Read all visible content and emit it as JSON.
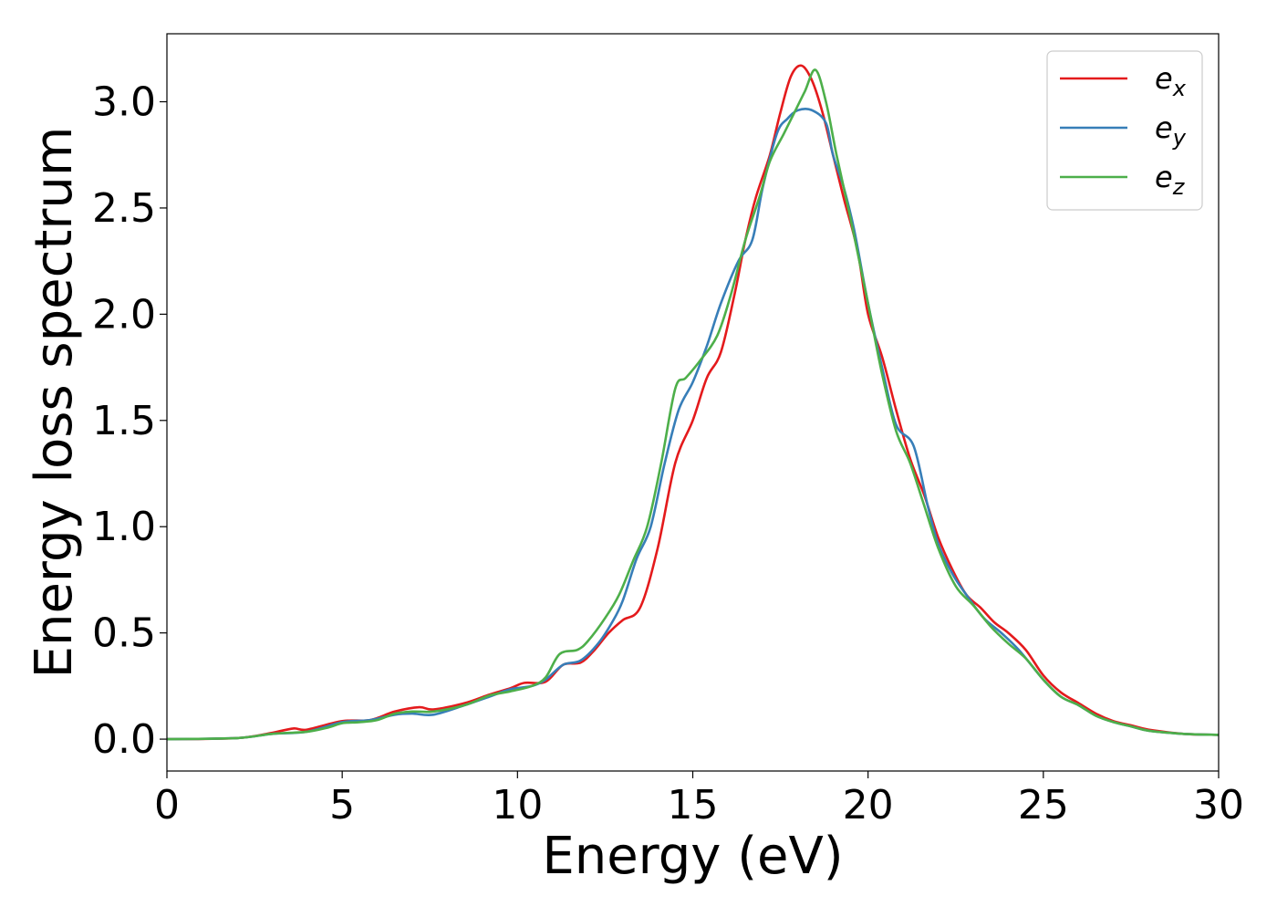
{
  "chart_data": {
    "type": "line",
    "title": "",
    "xlabel": "Energy (eV)",
    "ylabel": "Energy loss spectrum",
    "xlim": [
      0,
      30
    ],
    "ylim": [
      -0.15,
      3.32
    ],
    "xticks": [
      0,
      5,
      10,
      15,
      20,
      25,
      30
    ],
    "xtick_labels": [
      "0",
      "5",
      "10",
      "15",
      "20",
      "25",
      "30"
    ],
    "yticks": [
      0.0,
      0.5,
      1.0,
      1.5,
      2.0,
      2.5,
      3.0
    ],
    "ytick_labels": [
      "0.0",
      "0.5",
      "1.0",
      "1.5",
      "2.0",
      "2.5",
      "3.0"
    ],
    "grid": false,
    "legend_position": "top-right",
    "series": [
      {
        "name": "e_x",
        "label_base": "e",
        "label_sub": "x",
        "color": "#e41a1c",
        "points": [
          [
            0,
            0
          ],
          [
            2,
            0.005
          ],
          [
            3,
            0.03
          ],
          [
            3.6,
            0.05
          ],
          [
            4,
            0.045
          ],
          [
            5,
            0.085
          ],
          [
            5.8,
            0.09
          ],
          [
            6.5,
            0.13
          ],
          [
            7.2,
            0.15
          ],
          [
            7.6,
            0.14
          ],
          [
            8.5,
            0.17
          ],
          [
            9.2,
            0.21
          ],
          [
            9.8,
            0.24
          ],
          [
            10.2,
            0.265
          ],
          [
            10.8,
            0.27
          ],
          [
            11.3,
            0.35
          ],
          [
            11.8,
            0.36
          ],
          [
            12.2,
            0.42
          ],
          [
            12.6,
            0.5
          ],
          [
            13,
            0.56
          ],
          [
            13.5,
            0.62
          ],
          [
            14,
            0.9
          ],
          [
            14.5,
            1.3
          ],
          [
            15,
            1.5
          ],
          [
            15.4,
            1.7
          ],
          [
            15.8,
            1.82
          ],
          [
            16.2,
            2.1
          ],
          [
            16.5,
            2.35
          ],
          [
            16.8,
            2.55
          ],
          [
            17.2,
            2.75
          ],
          [
            17.5,
            2.95
          ],
          [
            17.8,
            3.12
          ],
          [
            18.1,
            3.17
          ],
          [
            18.4,
            3.1
          ],
          [
            18.7,
            2.95
          ],
          [
            19,
            2.75
          ],
          [
            19.3,
            2.55
          ],
          [
            19.7,
            2.3
          ],
          [
            20,
            2.0
          ],
          [
            20.4,
            1.8
          ],
          [
            20.8,
            1.55
          ],
          [
            21.2,
            1.32
          ],
          [
            21.6,
            1.15
          ],
          [
            22,
            0.95
          ],
          [
            22.4,
            0.8
          ],
          [
            22.8,
            0.68
          ],
          [
            23.2,
            0.62
          ],
          [
            23.6,
            0.55
          ],
          [
            24,
            0.5
          ],
          [
            24.5,
            0.42
          ],
          [
            25,
            0.3
          ],
          [
            25.5,
            0.22
          ],
          [
            26,
            0.17
          ],
          [
            26.5,
            0.12
          ],
          [
            27,
            0.085
          ],
          [
            27.5,
            0.065
          ],
          [
            28,
            0.045
          ],
          [
            29,
            0.025
          ],
          [
            30,
            0.02
          ]
        ]
      },
      {
        "name": "e_y",
        "label_base": "e",
        "label_sub": "y",
        "color": "#377eb8",
        "points": [
          [
            0,
            0
          ],
          [
            2,
            0.005
          ],
          [
            3,
            0.025
          ],
          [
            4,
            0.035
          ],
          [
            5,
            0.08
          ],
          [
            5.8,
            0.09
          ],
          [
            6.5,
            0.115
          ],
          [
            7,
            0.12
          ],
          [
            7.6,
            0.115
          ],
          [
            8.5,
            0.16
          ],
          [
            9.2,
            0.2
          ],
          [
            9.8,
            0.235
          ],
          [
            10.4,
            0.25
          ],
          [
            10.8,
            0.28
          ],
          [
            11.3,
            0.35
          ],
          [
            11.8,
            0.37
          ],
          [
            12.3,
            0.45
          ],
          [
            12.7,
            0.55
          ],
          [
            13,
            0.65
          ],
          [
            13.4,
            0.85
          ],
          [
            13.8,
            1.0
          ],
          [
            14.2,
            1.3
          ],
          [
            14.6,
            1.55
          ],
          [
            15,
            1.68
          ],
          [
            15.4,
            1.85
          ],
          [
            15.8,
            2.05
          ],
          [
            16.3,
            2.25
          ],
          [
            16.7,
            2.35
          ],
          [
            17,
            2.6
          ],
          [
            17.4,
            2.85
          ],
          [
            17.7,
            2.92
          ],
          [
            18,
            2.96
          ],
          [
            18.4,
            2.96
          ],
          [
            18.8,
            2.9
          ],
          [
            19,
            2.75
          ],
          [
            19.3,
            2.6
          ],
          [
            19.6,
            2.4
          ],
          [
            20,
            2.05
          ],
          [
            20.4,
            1.75
          ],
          [
            20.8,
            1.48
          ],
          [
            21.3,
            1.38
          ],
          [
            21.7,
            1.1
          ],
          [
            22,
            0.92
          ],
          [
            22.4,
            0.78
          ],
          [
            22.8,
            0.68
          ],
          [
            23.3,
            0.57
          ],
          [
            23.8,
            0.5
          ],
          [
            24.3,
            0.42
          ],
          [
            25,
            0.28
          ],
          [
            25.5,
            0.2
          ],
          [
            26,
            0.16
          ],
          [
            26.5,
            0.11
          ],
          [
            27,
            0.08
          ],
          [
            27.5,
            0.06
          ],
          [
            28,
            0.04
          ],
          [
            29,
            0.025
          ],
          [
            30,
            0.02
          ]
        ]
      },
      {
        "name": "e_z",
        "label_base": "e",
        "label_sub": "z",
        "color": "#4daf4a",
        "points": [
          [
            0,
            0
          ],
          [
            2,
            0.005
          ],
          [
            3,
            0.025
          ],
          [
            4,
            0.035
          ],
          [
            4.6,
            0.055
          ],
          [
            5,
            0.075
          ],
          [
            5.5,
            0.08
          ],
          [
            6,
            0.09
          ],
          [
            6.5,
            0.12
          ],
          [
            7,
            0.13
          ],
          [
            7.6,
            0.13
          ],
          [
            8.5,
            0.16
          ],
          [
            9.2,
            0.205
          ],
          [
            9.8,
            0.225
          ],
          [
            10.4,
            0.25
          ],
          [
            10.8,
            0.29
          ],
          [
            11.2,
            0.4
          ],
          [
            11.7,
            0.42
          ],
          [
            12,
            0.46
          ],
          [
            12.5,
            0.57
          ],
          [
            12.9,
            0.68
          ],
          [
            13.3,
            0.84
          ],
          [
            13.7,
            1.0
          ],
          [
            14.1,
            1.3
          ],
          [
            14.5,
            1.65
          ],
          [
            14.8,
            1.7
          ],
          [
            15.2,
            1.78
          ],
          [
            15.7,
            1.9
          ],
          [
            16.1,
            2.1
          ],
          [
            16.5,
            2.35
          ],
          [
            16.9,
            2.55
          ],
          [
            17.2,
            2.72
          ],
          [
            17.6,
            2.85
          ],
          [
            17.9,
            2.95
          ],
          [
            18.2,
            3.05
          ],
          [
            18.5,
            3.15
          ],
          [
            18.8,
            3.0
          ],
          [
            19.1,
            2.75
          ],
          [
            19.5,
            2.45
          ],
          [
            20,
            2.05
          ],
          [
            20.4,
            1.72
          ],
          [
            20.8,
            1.45
          ],
          [
            21.2,
            1.3
          ],
          [
            21.6,
            1.1
          ],
          [
            22,
            0.9
          ],
          [
            22.5,
            0.72
          ],
          [
            23,
            0.63
          ],
          [
            23.5,
            0.53
          ],
          [
            24,
            0.45
          ],
          [
            24.5,
            0.38
          ],
          [
            25,
            0.28
          ],
          [
            25.5,
            0.2
          ],
          [
            26,
            0.16
          ],
          [
            26.5,
            0.11
          ],
          [
            27,
            0.08
          ],
          [
            27.5,
            0.06
          ],
          [
            28,
            0.04
          ],
          [
            29,
            0.025
          ],
          [
            30,
            0.02
          ]
        ]
      }
    ]
  }
}
